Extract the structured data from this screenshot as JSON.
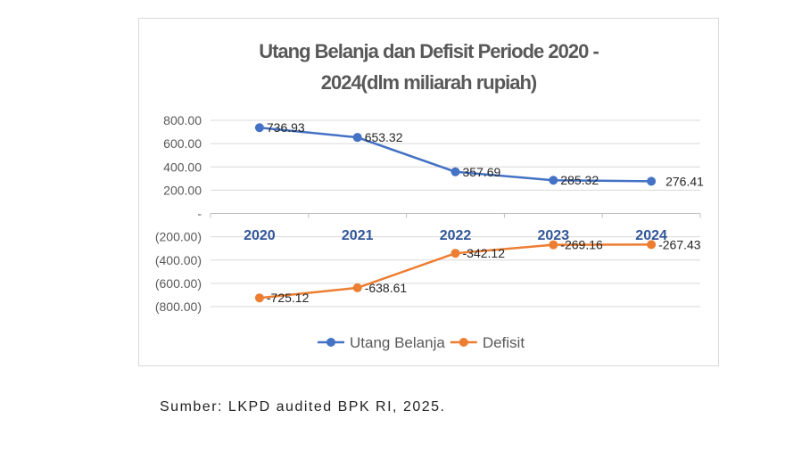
{
  "chart_data": {
    "type": "line",
    "title_lines": [
      "Utang Belanja dan Defisit Periode 2020 -",
      "2024(dlm miliarah rupiah)"
    ],
    "categories": [
      "2020",
      "2021",
      "2022",
      "2023",
      "2024"
    ],
    "series": [
      {
        "name": "Utang Belanja",
        "values": [
          736.93,
          653.32,
          357.69,
          285.32,
          276.41
        ],
        "labels": [
          "736.93",
          "653.32",
          "357.69",
          "285.32",
          "276.41"
        ],
        "color": "#4472c4"
      },
      {
        "name": "Defisit",
        "values": [
          -725.12,
          -638.61,
          -342.12,
          -269.16,
          -267.43
        ],
        "labels": [
          "-725.12",
          "-638.61",
          "-342.12",
          "-269.16",
          "-267.43"
        ],
        "color": "#ed7d31"
      }
    ],
    "y_ticks": [
      800,
      600,
      400,
      200,
      0,
      -200,
      -400,
      -600,
      -800
    ],
    "y_tick_labels": [
      "800.00",
      "600.00",
      "400.00",
      "200.00",
      "-",
      "(200.00)",
      "(400.00)",
      "(600.00)",
      "(800.00)"
    ],
    "ylim": [
      -800,
      800
    ],
    "grid": true,
    "legend": "bottom",
    "category_label_color": "#2f5597"
  },
  "source": "Sumber: LKPD audited BPK RI, 2025."
}
